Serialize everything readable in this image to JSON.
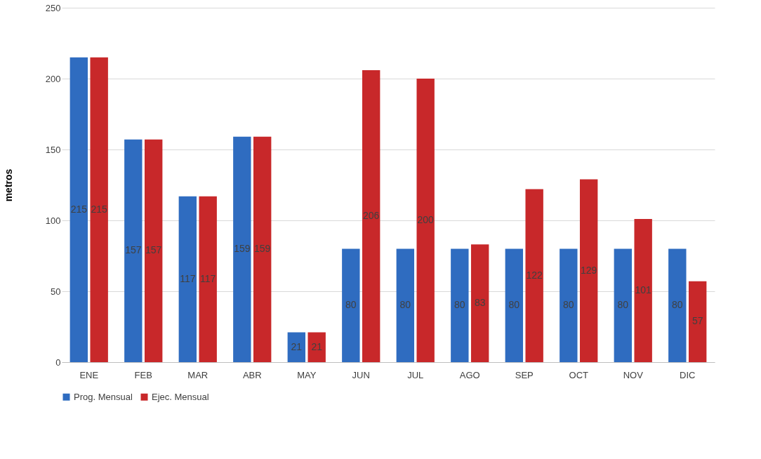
{
  "chart_data": {
    "type": "bar",
    "ylabel": "metros",
    "categories": [
      "ENE",
      "FEB",
      "MAR",
      "ABR",
      "MAY",
      "JUN",
      "JUL",
      "AGO",
      "SEP",
      "OCT",
      "NOV",
      "DIC"
    ],
    "series": [
      {
        "name": "Prog. Mensual",
        "color": "#2f6cc0",
        "values": [
          215,
          157,
          117,
          159,
          21,
          80,
          80,
          80,
          80,
          80,
          80,
          80
        ]
      },
      {
        "name": "Ejec. Mensual",
        "color": "#c8282a",
        "values": [
          215,
          157,
          117,
          159,
          21,
          206,
          200,
          83,
          122,
          129,
          101,
          57
        ]
      }
    ],
    "ylim": [
      0,
      250
    ],
    "yticks": [
      0,
      50,
      100,
      150,
      200,
      250
    ],
    "grid": "y",
    "legend": "bottom",
    "data_labels": true
  }
}
